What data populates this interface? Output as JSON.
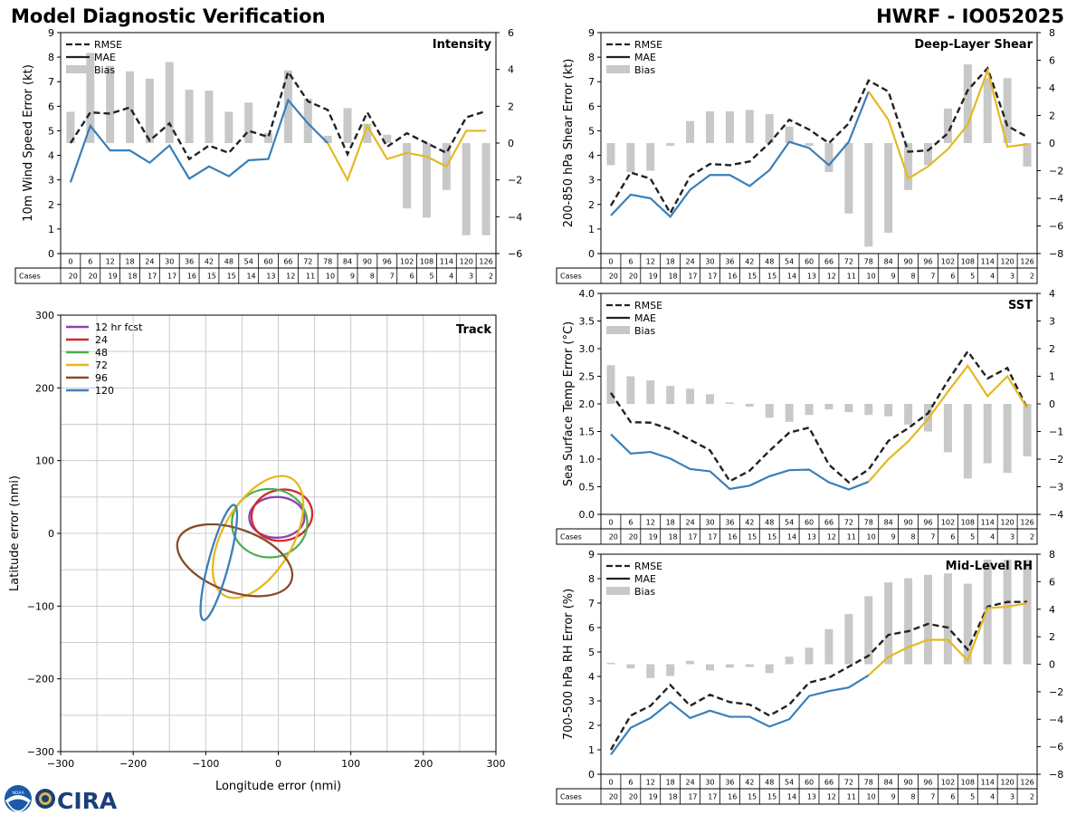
{
  "header": {
    "title_left": "Model Diagnostic Verification",
    "title_right": "HWRF - IO052025"
  },
  "legend_labels": {
    "rmse": "RMSE",
    "mae": "MAE",
    "bias": "Bias"
  },
  "colors": {
    "rmse": "#222222",
    "mae": "#3a7fb8",
    "mae_low_n": "#e6b820",
    "bias": "#c8c8c8",
    "grid": "#cccccc"
  },
  "cases_label": "Cases",
  "leads": [
    0,
    6,
    12,
    18,
    24,
    30,
    36,
    42,
    48,
    54,
    60,
    66,
    72,
    78,
    84,
    90,
    96,
    102,
    108,
    114,
    120,
    126
  ],
  "chart_data": [
    {
      "id": "intensity",
      "type": "line",
      "title": "Intensity",
      "ylabel": "10m Wind Speed Error (kt)",
      "ylim": [
        0,
        9
      ],
      "yticks": [
        0,
        1,
        2,
        3,
        4,
        5,
        6,
        7,
        8,
        9
      ],
      "y2lim": [
        -6,
        6
      ],
      "y2ticks": [
        -6,
        -4,
        -2,
        0,
        2,
        4,
        6
      ],
      "series": [
        {
          "name": "RMSE",
          "values": [
            4.5,
            5.75,
            5.7,
            5.95,
            4.6,
            5.3,
            3.85,
            4.4,
            4.1,
            5.0,
            4.75,
            7.4,
            6.2,
            5.85,
            4.05,
            5.75,
            4.35,
            4.9,
            4.5,
            4.1,
            5.55,
            5.8
          ]
        },
        {
          "name": "MAE",
          "values": [
            2.9,
            5.2,
            4.2,
            4.2,
            3.7,
            4.4,
            3.05,
            3.55,
            3.15,
            3.8,
            3.85,
            6.25,
            5.3,
            4.5,
            3.0,
            5.2,
            3.85,
            4.1,
            3.95,
            3.55,
            5.0,
            5.0
          ]
        },
        {
          "name": "Bias",
          "values": [
            1.7,
            4.9,
            4.2,
            3.9,
            3.5,
            4.4,
            2.9,
            2.85,
            1.7,
            2.2,
            0.55,
            3.95,
            2.4,
            0.4,
            1.9,
            1.05,
            0.45,
            -3.55,
            -4.05,
            -2.55,
            -5.0,
            -5.0
          ]
        }
      ],
      "cases": [
        20,
        20,
        19,
        18,
        17,
        17,
        16,
        15,
        15,
        14,
        13,
        12,
        11,
        10,
        9,
        8,
        7,
        6,
        5,
        4,
        3,
        2
      ]
    },
    {
      "id": "shear",
      "type": "line",
      "title": "Deep-Layer Shear",
      "ylabel": "200-850 hPa Shear Error (kt)",
      "ylim": [
        0,
        9
      ],
      "yticks": [
        0,
        1,
        2,
        3,
        4,
        5,
        6,
        7,
        8,
        9
      ],
      "y2lim": [
        -8,
        8
      ],
      "y2ticks": [
        -8,
        -6,
        -4,
        -2,
        0,
        2,
        4,
        6,
        8
      ],
      "series": [
        {
          "name": "RMSE",
          "values": [
            1.95,
            3.3,
            3.05,
            1.65,
            3.15,
            3.65,
            3.6,
            3.75,
            4.5,
            5.45,
            5.05,
            4.5,
            5.3,
            7.05,
            6.6,
            4.15,
            4.2,
            4.9,
            6.65,
            7.55,
            5.2,
            4.75
          ]
        },
        {
          "name": "MAE",
          "values": [
            1.55,
            2.4,
            2.25,
            1.5,
            2.6,
            3.2,
            3.2,
            2.75,
            3.4,
            4.55,
            4.3,
            3.6,
            4.55,
            6.6,
            5.45,
            3.05,
            3.55,
            4.25,
            5.25,
            7.45,
            4.35,
            4.45
          ]
        },
        {
          "name": "Bias",
          "values": [
            -1.6,
            -2.1,
            -2.0,
            -0.2,
            1.6,
            2.3,
            2.3,
            2.4,
            2.1,
            1.2,
            -0.2,
            -2.1,
            -5.1,
            -7.5,
            -6.5,
            -3.4,
            -1.6,
            2.5,
            5.7,
            4.7,
            4.7,
            -1.7
          ]
        }
      ],
      "cases": [
        20,
        20,
        19,
        18,
        17,
        17,
        16,
        15,
        15,
        14,
        13,
        12,
        11,
        10,
        9,
        8,
        7,
        6,
        5,
        4,
        3,
        2
      ]
    },
    {
      "id": "sst",
      "type": "line",
      "title": "SST",
      "ylabel": "Sea Surface Temp Error (°C)",
      "ylim": [
        0,
        4
      ],
      "yticks": [
        0.0,
        0.5,
        1.0,
        1.5,
        2.0,
        2.5,
        3.0,
        3.5,
        4.0
      ],
      "y2lim": [
        -4,
        4
      ],
      "y2ticks": [
        -4,
        -3,
        -2,
        -1,
        0,
        1,
        2,
        3,
        4
      ],
      "series": [
        {
          "name": "RMSE",
          "values": [
            2.2,
            1.67,
            1.66,
            1.54,
            1.35,
            1.16,
            0.6,
            0.79,
            1.15,
            1.48,
            1.57,
            0.9,
            0.58,
            0.81,
            1.33,
            1.56,
            1.83,
            2.42,
            2.95,
            2.46,
            2.65,
            1.92
          ]
        },
        {
          "name": "MAE",
          "values": [
            1.45,
            1.1,
            1.13,
            1.01,
            0.82,
            0.78,
            0.46,
            0.52,
            0.69,
            0.8,
            0.81,
            0.58,
            0.45,
            0.59,
            1.0,
            1.32,
            1.73,
            2.22,
            2.69,
            2.14,
            2.5,
            1.92
          ]
        },
        {
          "name": "Bias",
          "values": [
            1.4,
            1.0,
            0.85,
            0.65,
            0.55,
            0.35,
            0.05,
            -0.1,
            -0.5,
            -0.65,
            -0.4,
            -0.2,
            -0.3,
            -0.4,
            -0.45,
            -0.75,
            -1.0,
            -1.75,
            -2.7,
            -2.15,
            -2.5,
            -1.9
          ]
        }
      ],
      "cases": [
        20,
        20,
        19,
        18,
        17,
        17,
        16,
        15,
        15,
        14,
        13,
        12,
        11,
        10,
        9,
        8,
        7,
        6,
        5,
        4,
        3,
        2
      ]
    },
    {
      "id": "rh",
      "type": "line",
      "title": "Mid-Level RH",
      "ylabel": "700-500 hPa RH Error (%)",
      "ylim": [
        0,
        9
      ],
      "yticks": [
        0,
        1,
        2,
        3,
        4,
        5,
        6,
        7,
        8,
        9
      ],
      "y2lim": [
        -8,
        8
      ],
      "y2ticks": [
        -8,
        -6,
        -4,
        -2,
        0,
        2,
        4,
        6,
        8
      ],
      "series": [
        {
          "name": "RMSE",
          "values": [
            1.0,
            2.4,
            2.8,
            3.65,
            2.8,
            3.25,
            2.95,
            2.85,
            2.4,
            2.85,
            3.75,
            3.95,
            4.4,
            4.85,
            5.7,
            5.85,
            6.15,
            6.0,
            5.1,
            6.85,
            7.05,
            7.05
          ]
        },
        {
          "name": "MAE",
          "values": [
            0.8,
            1.9,
            2.3,
            2.95,
            2.3,
            2.6,
            2.35,
            2.35,
            1.95,
            2.25,
            3.2,
            3.4,
            3.55,
            4.05,
            4.8,
            5.2,
            5.5,
            5.5,
            4.65,
            6.8,
            6.85,
            7.0
          ]
        },
        {
          "name": "Bias",
          "values": [
            0.1,
            -0.3,
            -1.0,
            -0.85,
            0.25,
            -0.45,
            -0.25,
            -0.2,
            -0.65,
            0.55,
            1.2,
            2.55,
            3.65,
            4.95,
            5.95,
            6.25,
            6.5,
            6.6,
            5.85,
            7.6,
            7.6,
            7.6
          ]
        }
      ],
      "cases": [
        20,
        20,
        19,
        18,
        17,
        17,
        16,
        15,
        15,
        14,
        13,
        12,
        11,
        10,
        9,
        8,
        7,
        6,
        5,
        4,
        3,
        2
      ]
    },
    {
      "id": "track",
      "type": "scatter",
      "title": "Track",
      "xlabel": "Longitude error (nmi)",
      "ylabel": "Latitude error (nmi)",
      "xlim": [
        -300,
        300
      ],
      "ylim": [
        -300,
        300
      ],
      "xticks": [
        -300,
        -200,
        -100,
        0,
        100,
        200,
        300
      ],
      "yticks": [
        -300,
        -200,
        -100,
        0,
        100,
        200,
        300
      ],
      "ellipses": [
        {
          "name": "12 hr fcst",
          "color": "#8e44ad",
          "cx": -2,
          "cy": 22,
          "rx": 38,
          "ry": 28,
          "angle": 0
        },
        {
          "name": "24",
          "color": "#d62728",
          "cx": 5,
          "cy": 25,
          "rx": 42,
          "ry": 35,
          "angle": 10
        },
        {
          "name": "48",
          "color": "#4caf50",
          "cx": -12,
          "cy": 14,
          "rx": 52,
          "ry": 47,
          "angle": 0
        },
        {
          "name": "72",
          "color": "#e6b820",
          "cx": -28,
          "cy": -5,
          "rx": 93,
          "ry": 48,
          "angle": 60
        },
        {
          "name": "96",
          "color": "#8b4a2b",
          "cx": -60,
          "cy": -37,
          "rx": 83,
          "ry": 43,
          "angle": -20
        },
        {
          "name": "120",
          "color": "#3a7fb8",
          "cx": -82,
          "cy": -40,
          "rx": 82,
          "ry": 14,
          "angle": 75
        }
      ]
    }
  ],
  "logos": {
    "noaa": "NOAA",
    "cira": "CIRA"
  }
}
